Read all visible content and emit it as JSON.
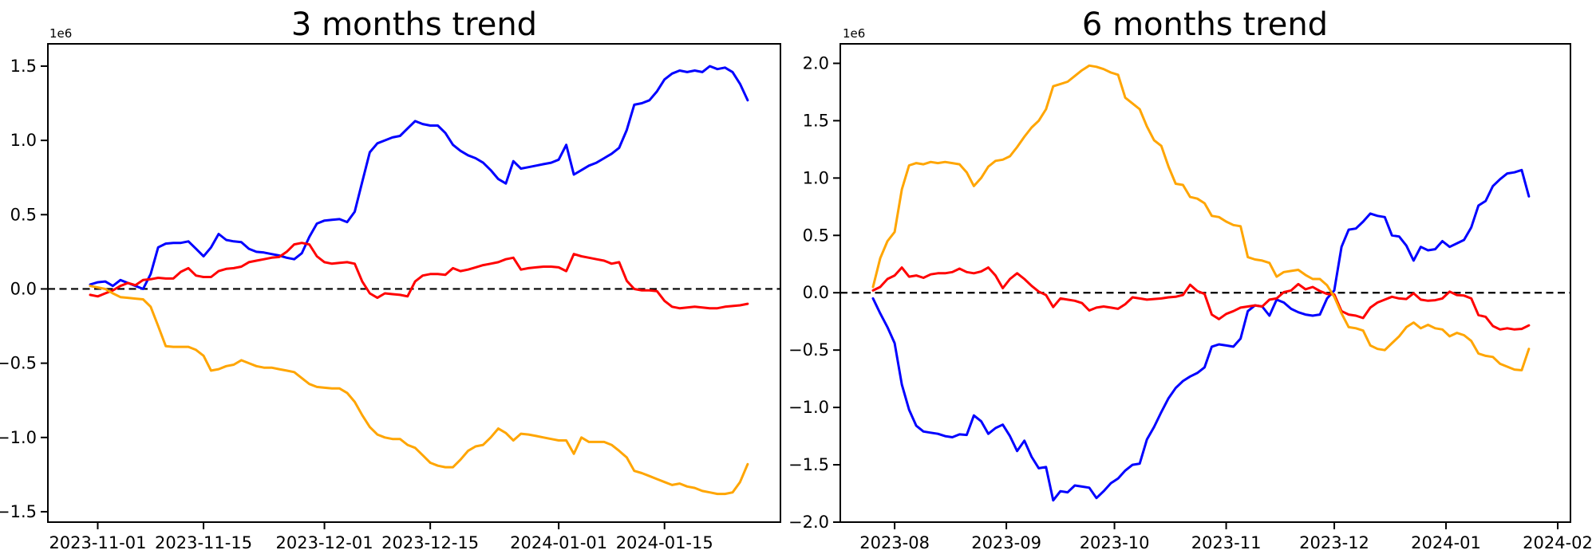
{
  "page": {
    "background": "#ffffff"
  },
  "chart_data": [
    {
      "type": "line",
      "title": "3 months trend",
      "y_offset_label": "1e6",
      "y_unit": 1000000,
      "ylim": [
        -1.57,
        1.65
      ],
      "y_ticks": [
        1.5,
        1.0,
        0.5,
        0.0,
        -0.5,
        -1.0,
        -1.5
      ],
      "x_start_date": "2023-10-31",
      "x_step_days": 1,
      "x_ticks": [
        {
          "label": "2023-11-01",
          "day": 1
        },
        {
          "label": "2023-11-15",
          "day": 15
        },
        {
          "label": "2023-12-01",
          "day": 31
        },
        {
          "label": "2023-12-15",
          "day": 45
        },
        {
          "label": "2024-01-01",
          "day": 62
        },
        {
          "label": "2024-01-15",
          "day": 76
        }
      ],
      "grid": false,
      "legend": null,
      "reference_line": {
        "y": 0,
        "style": "dashed",
        "color": "#000000"
      },
      "series": [
        {
          "name": "series-blue",
          "color": "#0000ff",
          "values": [
            0.03,
            0.045,
            0.05,
            0.02,
            0.06,
            0.04,
            0.02,
            0.0,
            0.1,
            0.28,
            0.305,
            0.31,
            0.31,
            0.32,
            0.27,
            0.22,
            0.28,
            0.37,
            0.33,
            0.32,
            0.315,
            0.27,
            0.25,
            0.245,
            0.235,
            0.225,
            0.21,
            0.2,
            0.24,
            0.35,
            0.44,
            0.46,
            0.465,
            0.47,
            0.45,
            0.52,
            0.72,
            0.92,
            0.98,
            1.0,
            1.02,
            1.03,
            1.08,
            1.13,
            1.11,
            1.1,
            1.1,
            1.05,
            0.97,
            0.93,
            0.9,
            0.88,
            0.85,
            0.8,
            0.74,
            0.71,
            0.86,
            0.81,
            0.82,
            0.83,
            0.84,
            0.85,
            0.87,
            0.97,
            0.77,
            0.8,
            0.83,
            0.85,
            0.88,
            0.91,
            0.95,
            1.07,
            1.24,
            1.25,
            1.27,
            1.33,
            1.41,
            1.45,
            1.47,
            1.46,
            1.47,
            1.46,
            1.5,
            1.48,
            1.49,
            1.46,
            1.38,
            1.27
          ]
        },
        {
          "name": "series-red",
          "color": "#ff0000",
          "values": [
            -0.04,
            -0.05,
            -0.03,
            -0.01,
            0.02,
            0.04,
            0.025,
            0.06,
            0.065,
            0.075,
            0.07,
            0.07,
            0.115,
            0.14,
            0.09,
            0.08,
            0.08,
            0.12,
            0.135,
            0.14,
            0.15,
            0.18,
            0.19,
            0.2,
            0.21,
            0.215,
            0.25,
            0.3,
            0.31,
            0.3,
            0.22,
            0.18,
            0.17,
            0.175,
            0.18,
            0.17,
            0.05,
            -0.03,
            -0.06,
            -0.03,
            -0.035,
            -0.04,
            -0.05,
            0.05,
            0.09,
            0.1,
            0.1,
            0.095,
            0.14,
            0.12,
            0.13,
            0.145,
            0.16,
            0.17,
            0.18,
            0.2,
            0.21,
            0.13,
            0.14,
            0.145,
            0.15,
            0.15,
            0.145,
            0.12,
            0.235,
            0.22,
            0.21,
            0.2,
            0.19,
            0.17,
            0.18,
            0.055,
            0.0,
            -0.01,
            -0.01,
            -0.015,
            -0.08,
            -0.12,
            -0.13,
            -0.125,
            -0.12,
            -0.125,
            -0.13,
            -0.13,
            -0.12,
            -0.115,
            -0.11,
            -0.1
          ]
        },
        {
          "name": "series-orange",
          "color": "#ffa500",
          "values": [
            0.02,
            0.01,
            0.0,
            -0.03,
            -0.055,
            -0.06,
            -0.065,
            -0.07,
            -0.12,
            -0.25,
            -0.385,
            -0.39,
            -0.39,
            -0.39,
            -0.41,
            -0.45,
            -0.55,
            -0.54,
            -0.52,
            -0.51,
            -0.48,
            -0.5,
            -0.52,
            -0.53,
            -0.53,
            -0.54,
            -0.55,
            -0.56,
            -0.6,
            -0.64,
            -0.66,
            -0.665,
            -0.67,
            -0.67,
            -0.7,
            -0.76,
            -0.85,
            -0.93,
            -0.98,
            -1.0,
            -1.01,
            -1.01,
            -1.05,
            -1.07,
            -1.12,
            -1.17,
            -1.19,
            -1.2,
            -1.2,
            -1.15,
            -1.09,
            -1.06,
            -1.05,
            -1.0,
            -0.94,
            -0.97,
            -1.02,
            -0.975,
            -0.98,
            -0.99,
            -1.0,
            -1.01,
            -1.02,
            -1.02,
            -1.11,
            -1.0,
            -1.03,
            -1.03,
            -1.03,
            -1.05,
            -1.09,
            -1.135,
            -1.225,
            -1.24,
            -1.26,
            -1.28,
            -1.3,
            -1.32,
            -1.31,
            -1.33,
            -1.34,
            -1.36,
            -1.37,
            -1.38,
            -1.38,
            -1.37,
            -1.3,
            -1.18
          ]
        }
      ]
    },
    {
      "type": "line",
      "title": "6 months trend",
      "y_offset_label": "1e6",
      "y_unit": 1000000,
      "ylim": [
        -2.0,
        2.17
      ],
      "y_ticks": [
        2.0,
        1.5,
        1.0,
        0.5,
        0.0,
        -0.5,
        -1.0,
        -1.5,
        -2.0
      ],
      "x_start_date": "2023-07-26",
      "x_step_days": 2,
      "x_ticks": [
        {
          "label": "2023-08",
          "day": 6
        },
        {
          "label": "2023-09",
          "day": 37
        },
        {
          "label": "2023-10",
          "day": 67
        },
        {
          "label": "2023-11",
          "day": 98
        },
        {
          "label": "2023-12",
          "day": 128
        },
        {
          "label": "2024-01",
          "day": 159
        },
        {
          "label": "2024-02",
          "day": 190
        }
      ],
      "grid": false,
      "legend": null,
      "reference_line": {
        "y": 0,
        "style": "dashed",
        "color": "#000000"
      },
      "series": [
        {
          "name": "series-blue",
          "color": "#0000ff",
          "values": [
            -0.05,
            -0.18,
            -0.3,
            -0.44,
            -0.8,
            -1.02,
            -1.16,
            -1.21,
            -1.22,
            -1.23,
            -1.25,
            -1.26,
            -1.235,
            -1.24,
            -1.07,
            -1.12,
            -1.23,
            -1.18,
            -1.15,
            -1.25,
            -1.38,
            -1.29,
            -1.43,
            -1.53,
            -1.52,
            -1.81,
            -1.73,
            -1.74,
            -1.68,
            -1.69,
            -1.7,
            -1.79,
            -1.73,
            -1.66,
            -1.62,
            -1.55,
            -1.5,
            -1.49,
            -1.28,
            -1.17,
            -1.04,
            -0.92,
            -0.83,
            -0.77,
            -0.73,
            -0.7,
            -0.65,
            -0.47,
            -0.45,
            -0.46,
            -0.47,
            -0.4,
            -0.16,
            -0.11,
            -0.12,
            -0.2,
            -0.06,
            -0.085,
            -0.14,
            -0.17,
            -0.19,
            -0.2,
            -0.19,
            -0.05,
            0.02,
            0.4,
            0.55,
            0.56,
            0.62,
            0.69,
            0.67,
            0.66,
            0.5,
            0.49,
            0.41,
            0.28,
            0.4,
            0.37,
            0.38,
            0.45,
            0.4,
            0.43,
            0.46,
            0.57,
            0.76,
            0.8,
            0.93,
            0.99,
            1.04,
            1.05,
            1.07,
            0.84
          ]
        },
        {
          "name": "series-red",
          "color": "#ff0000",
          "values": [
            0.02,
            0.05,
            0.12,
            0.15,
            0.22,
            0.14,
            0.15,
            0.13,
            0.16,
            0.17,
            0.17,
            0.18,
            0.21,
            0.18,
            0.17,
            0.185,
            0.22,
            0.15,
            0.04,
            0.12,
            0.17,
            0.12,
            0.06,
            0.01,
            -0.02,
            -0.125,
            -0.05,
            -0.06,
            -0.07,
            -0.09,
            -0.155,
            -0.13,
            -0.12,
            -0.13,
            -0.14,
            -0.1,
            -0.04,
            -0.05,
            -0.06,
            -0.055,
            -0.05,
            -0.04,
            -0.035,
            -0.02,
            0.07,
            0.015,
            -0.01,
            -0.19,
            -0.23,
            -0.185,
            -0.16,
            -0.13,
            -0.12,
            -0.11,
            -0.12,
            -0.06,
            -0.05,
            0.005,
            0.02,
            0.075,
            0.03,
            0.05,
            0.015,
            -0.01,
            -0.015,
            -0.16,
            -0.19,
            -0.2,
            -0.22,
            -0.13,
            -0.085,
            -0.06,
            -0.035,
            -0.05,
            -0.055,
            -0.005,
            -0.06,
            -0.07,
            -0.065,
            -0.05,
            0.01,
            -0.02,
            -0.025,
            -0.05,
            -0.195,
            -0.21,
            -0.29,
            -0.32,
            -0.31,
            -0.32,
            -0.315,
            -0.285
          ]
        },
        {
          "name": "series-orange",
          "color": "#ffa500",
          "values": [
            0.05,
            0.3,
            0.45,
            0.53,
            0.9,
            1.11,
            1.13,
            1.12,
            1.14,
            1.13,
            1.14,
            1.13,
            1.12,
            1.05,
            0.93,
            1.0,
            1.1,
            1.15,
            1.16,
            1.19,
            1.27,
            1.36,
            1.44,
            1.5,
            1.6,
            1.8,
            1.82,
            1.84,
            1.89,
            1.94,
            1.98,
            1.97,
            1.95,
            1.92,
            1.9,
            1.7,
            1.65,
            1.6,
            1.45,
            1.33,
            1.28,
            1.1,
            0.95,
            0.94,
            0.835,
            0.82,
            0.78,
            0.67,
            0.66,
            0.62,
            0.59,
            0.58,
            0.31,
            0.29,
            0.28,
            0.26,
            0.14,
            0.18,
            0.19,
            0.2,
            0.155,
            0.12,
            0.12,
            0.065,
            -0.035,
            -0.18,
            -0.3,
            -0.31,
            -0.33,
            -0.46,
            -0.49,
            -0.5,
            -0.44,
            -0.38,
            -0.3,
            -0.26,
            -0.31,
            -0.28,
            -0.31,
            -0.32,
            -0.38,
            -0.35,
            -0.37,
            -0.42,
            -0.53,
            -0.55,
            -0.56,
            -0.62,
            -0.645,
            -0.67,
            -0.675,
            -0.49
          ]
        }
      ]
    }
  ]
}
